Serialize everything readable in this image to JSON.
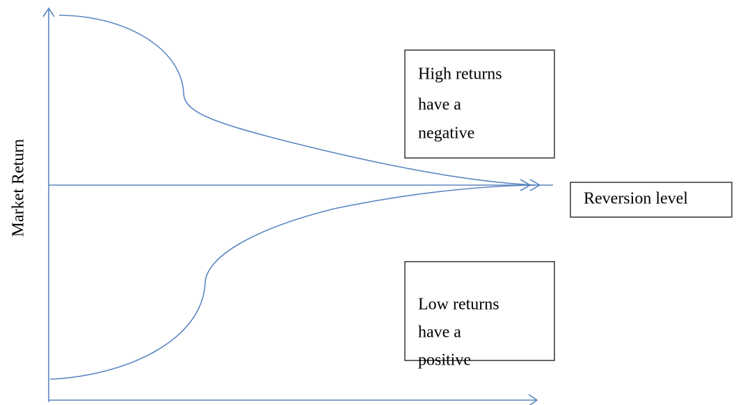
{
  "y_axis_label": "Market Return",
  "high_box": {
    "lines": [
      "High returns",
      "have a",
      "negative"
    ]
  },
  "reversion_label": "Reversion level",
  "low_box": {
    "lines": [
      "Low returns",
      "have a",
      "positive"
    ]
  }
}
